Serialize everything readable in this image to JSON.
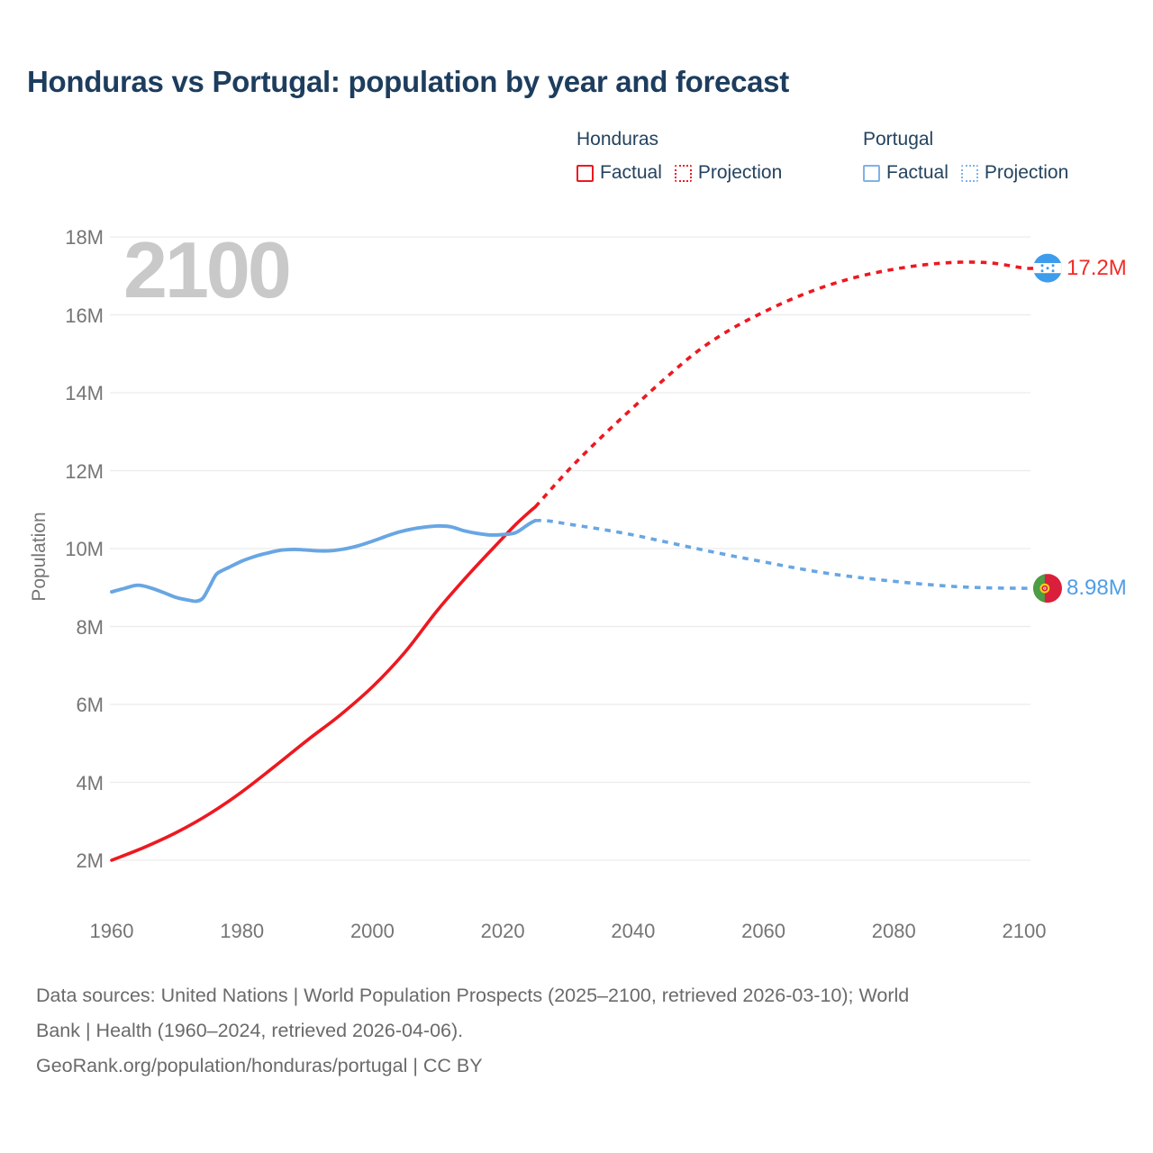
{
  "title": "Honduras vs Portugal: population by year and forecast",
  "watermark": "2100",
  "colors": {
    "title_text": "#1d3d5e",
    "axis_text": "#757575",
    "gridline": "#ececec",
    "watermark": "#c9c9c9",
    "footer_text": "#6a6a6a",
    "honduras": "#ee1820",
    "portugal": "#68a6e3",
    "honduras_label": "#f02c28",
    "portugal_label": "#4f9de6"
  },
  "legend": {
    "groups": [
      {
        "name": "Honduras",
        "color": "#ee1820",
        "items": [
          {
            "label": "Factual",
            "style": "solid"
          },
          {
            "label": "Projection",
            "style": "dotted"
          }
        ]
      },
      {
        "name": "Portugal",
        "color": "#7fb3e8",
        "items": [
          {
            "label": "Factual",
            "style": "solid"
          },
          {
            "label": "Projection",
            "style": "dotted"
          }
        ]
      }
    ]
  },
  "chart_data": {
    "type": "line",
    "title": "Honduras vs Portugal: population by year and forecast",
    "xlabel": "",
    "ylabel": "Population",
    "xlim": [
      1960,
      2100
    ],
    "ylim": [
      2000000,
      18000000
    ],
    "grid": "horizontal-only",
    "legend_position": "top-right",
    "watermark_year": "2100",
    "xticks": [
      1960,
      1980,
      2000,
      2020,
      2040,
      2060,
      2080,
      2100
    ],
    "yticks": [
      {
        "value": 2,
        "label": "2M"
      },
      {
        "value": 4,
        "label": "4M"
      },
      {
        "value": 6,
        "label": "6M"
      },
      {
        "value": 8,
        "label": "8M"
      },
      {
        "value": 10,
        "label": "10M"
      },
      {
        "value": 12,
        "label": "12M"
      },
      {
        "value": 14,
        "label": "14M"
      },
      {
        "value": 16,
        "label": "16M"
      },
      {
        "value": 18,
        "label": "18M"
      }
    ],
    "unit": "millions of people",
    "series": [
      {
        "name": "Honduras factual",
        "style": "solid",
        "color": "#ee1820",
        "width": 3.6,
        "points": [
          [
            1960,
            2.0
          ],
          [
            1965,
            2.33
          ],
          [
            1970,
            2.72
          ],
          [
            1975,
            3.19
          ],
          [
            1980,
            3.76
          ],
          [
            1985,
            4.41
          ],
          [
            1990,
            5.08
          ],
          [
            1995,
            5.72
          ],
          [
            2000,
            6.45
          ],
          [
            2005,
            7.34
          ],
          [
            2010,
            8.42
          ],
          [
            2015,
            9.38
          ],
          [
            2020,
            10.27
          ],
          [
            2022,
            10.62
          ],
          [
            2024,
            10.93
          ],
          [
            2025,
            11.07
          ]
        ]
      },
      {
        "name": "Honduras projection",
        "style": "dashed",
        "color": "#ee1820",
        "width": 3.6,
        "points": [
          [
            2025,
            11.07
          ],
          [
            2030,
            12.0
          ],
          [
            2035,
            12.84
          ],
          [
            2040,
            13.62
          ],
          [
            2045,
            14.38
          ],
          [
            2050,
            15.08
          ],
          [
            2055,
            15.63
          ],
          [
            2060,
            16.07
          ],
          [
            2065,
            16.45
          ],
          [
            2070,
            16.76
          ],
          [
            2075,
            17.0
          ],
          [
            2080,
            17.17
          ],
          [
            2085,
            17.29
          ],
          [
            2090,
            17.35
          ],
          [
            2095,
            17.33
          ],
          [
            2100,
            17.2
          ],
          [
            2101.8,
            17.2
          ]
        ]
      },
      {
        "name": "Portugal factual",
        "style": "solid",
        "color": "#68a6e3",
        "width": 3.9,
        "points": [
          [
            1960,
            8.89
          ],
          [
            1962,
            8.98
          ],
          [
            1964,
            9.06
          ],
          [
            1966,
            8.99
          ],
          [
            1968,
            8.87
          ],
          [
            1970,
            8.74
          ],
          [
            1972,
            8.67
          ],
          [
            1973,
            8.65
          ],
          [
            1974,
            8.73
          ],
          [
            1975,
            9.02
          ],
          [
            1976,
            9.33
          ],
          [
            1977,
            9.44
          ],
          [
            1978,
            9.52
          ],
          [
            1980,
            9.68
          ],
          [
            1982,
            9.8
          ],
          [
            1984,
            9.89
          ],
          [
            1986,
            9.96
          ],
          [
            1988,
            9.98
          ],
          [
            1990,
            9.96
          ],
          [
            1992,
            9.94
          ],
          [
            1994,
            9.95
          ],
          [
            1996,
            10.0
          ],
          [
            1998,
            10.08
          ],
          [
            2000,
            10.19
          ],
          [
            2002,
            10.31
          ],
          [
            2004,
            10.42
          ],
          [
            2006,
            10.5
          ],
          [
            2008,
            10.55
          ],
          [
            2010,
            10.58
          ],
          [
            2012,
            10.56
          ],
          [
            2014,
            10.46
          ],
          [
            2016,
            10.39
          ],
          [
            2018,
            10.35
          ],
          [
            2020,
            10.36
          ],
          [
            2022,
            10.41
          ],
          [
            2024,
            10.63
          ],
          [
            2025,
            10.72
          ]
        ]
      },
      {
        "name": "Portugal projection",
        "style": "dashed",
        "color": "#68a6e3",
        "width": 3.6,
        "points": [
          [
            2025,
            10.72
          ],
          [
            2027,
            10.71
          ],
          [
            2030,
            10.63
          ],
          [
            2035,
            10.5
          ],
          [
            2040,
            10.35
          ],
          [
            2045,
            10.17
          ],
          [
            2050,
            9.99
          ],
          [
            2055,
            9.82
          ],
          [
            2060,
            9.66
          ],
          [
            2065,
            9.5
          ],
          [
            2070,
            9.36
          ],
          [
            2075,
            9.25
          ],
          [
            2080,
            9.16
          ],
          [
            2085,
            9.08
          ],
          [
            2090,
            9.02
          ],
          [
            2095,
            8.99
          ],
          [
            2100,
            8.98
          ],
          [
            2101.8,
            8.98
          ]
        ]
      }
    ],
    "end_markers": [
      {
        "series": "Honduras",
        "year": 2100,
        "value": 17.2,
        "value_label": "17.2M",
        "label_color": "#f02c28",
        "flag": "honduras",
        "flag_colors": {
          "blue": "#3d9ceb",
          "white": "#ffffff"
        }
      },
      {
        "series": "Portugal",
        "year": 2100,
        "value": 8.98,
        "value_label": "8.98M",
        "label_color": "#4f9de6",
        "flag": "portugal",
        "flag_colors": {
          "green": "#4a9e45",
          "red": "#da1f3c",
          "yellow": "#f7d117",
          "inner": "#fdf3c8"
        }
      }
    ]
  },
  "footer": {
    "lines": [
      "Data sources: United Nations | World Population Prospects (2025–2100, retrieved 2026-03-10); World",
      "Bank | Health (1960–2024, retrieved 2026-04-06).",
      "GeoRank.org/population/honduras/portugal | CC BY"
    ]
  }
}
